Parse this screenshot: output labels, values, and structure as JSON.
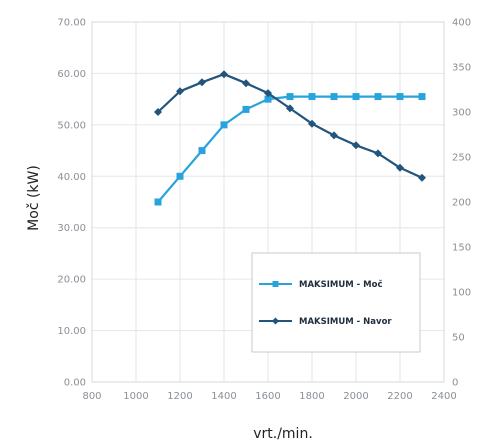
{
  "chart_data": {
    "type": "line",
    "x": [
      1100,
      1200,
      1300,
      1400,
      1500,
      1600,
      1700,
      1800,
      1900,
      2000,
      2100,
      2200,
      2300
    ],
    "xlabel": "vrt./min.",
    "ylabel": "Moč (kW)",
    "xlim": [
      800,
      2400
    ],
    "xticks": [
      "800",
      "1000",
      "1200",
      "1400",
      "1600",
      "1800",
      "2000",
      "2200",
      "2400"
    ],
    "ylim_left": [
      0,
      70
    ],
    "yticks_left": [
      "0.00",
      "10.00",
      "20.00",
      "30.00",
      "40.00",
      "50.00",
      "60.00",
      "70.00"
    ],
    "ylim_right": [
      0,
      400
    ],
    "yticks_right": [
      "0",
      "50",
      "100",
      "150",
      "200",
      "250",
      "300",
      "350",
      "400"
    ],
    "grid": true,
    "legend_position": "bottom-right",
    "series": [
      {
        "name": "MAKSIMUM - Moč",
        "axis": "left",
        "marker": "square",
        "color": "#29a3dc",
        "values": [
          35,
          40,
          45,
          50,
          53,
          55,
          55.5,
          55.5,
          55.5,
          55.5,
          55.5,
          55.5,
          55.5
        ]
      },
      {
        "name": "MAKSIMUM - Navor",
        "axis": "right",
        "marker": "diamond",
        "color": "#22557d",
        "values": [
          300,
          323,
          333,
          342,
          332,
          321,
          304,
          287,
          274,
          263,
          254,
          238,
          227
        ]
      }
    ]
  }
}
